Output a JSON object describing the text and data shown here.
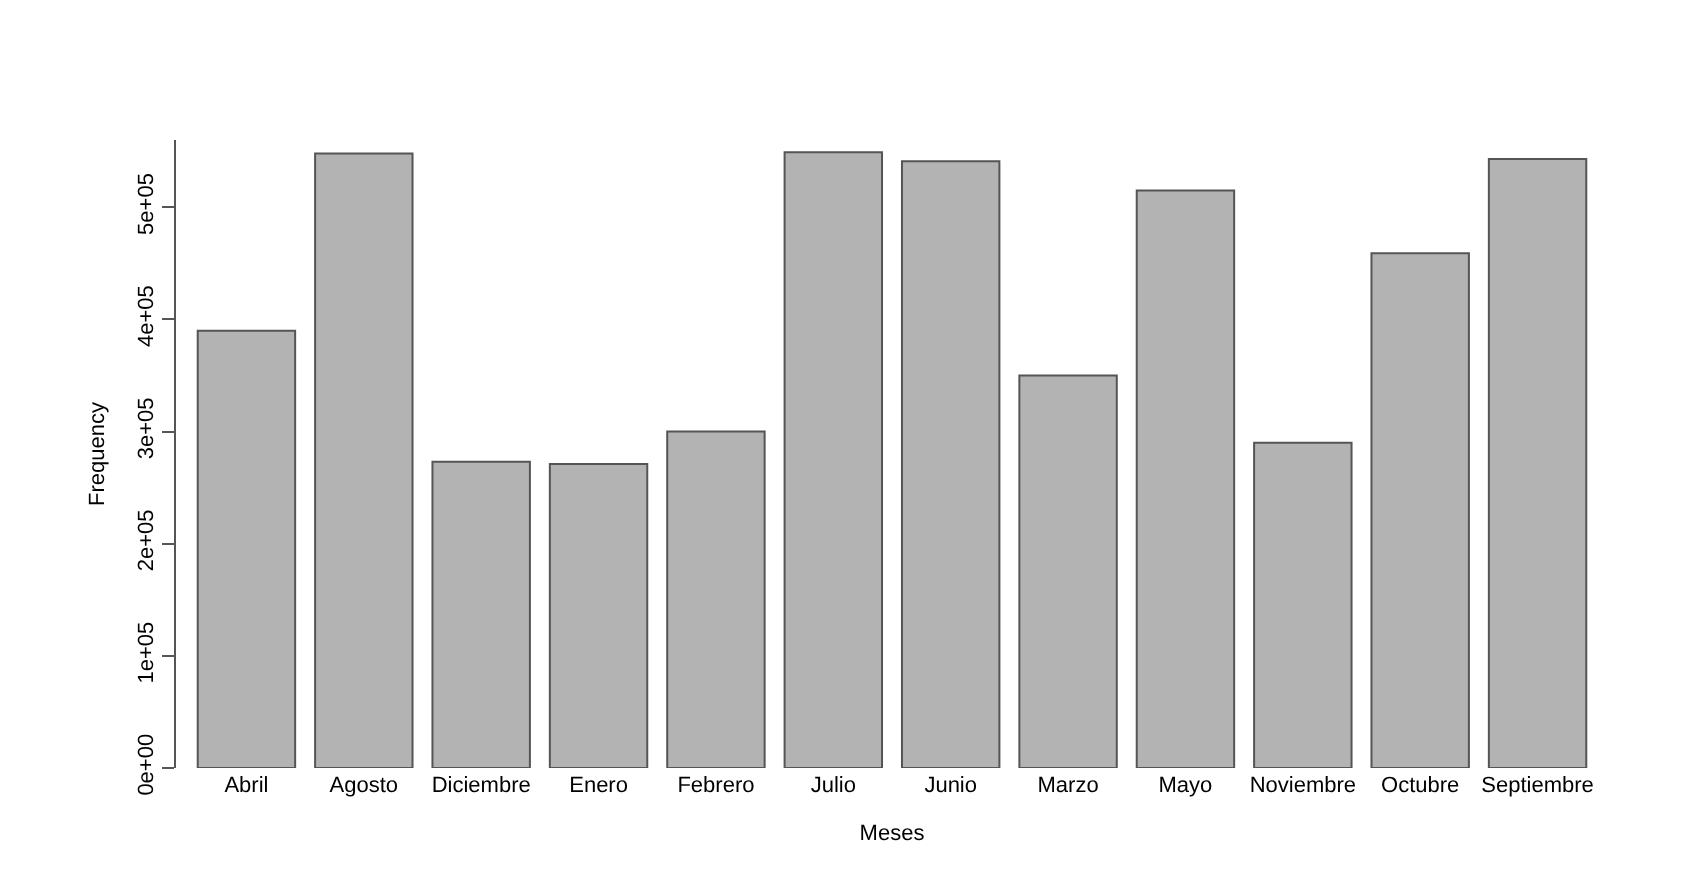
{
  "chart_data": {
    "type": "bar",
    "xlabel": "Meses",
    "ylabel": "Frequency",
    "categories": [
      "Abril",
      "Agosto",
      "Diciembre",
      "Enero",
      "Febrero",
      "Julio",
      "Junio",
      "Marzo",
      "Mayo",
      "Noviembre",
      "Octubre",
      "Septiembre"
    ],
    "values": [
      390000,
      548000,
      273000,
      271000,
      300000,
      549000,
      541000,
      350000,
      515000,
      290000,
      459000,
      543000
    ],
    "color": "#b3b3b3",
    "ylim": [
      0,
      560000
    ],
    "yticks": [
      {
        "value": 0,
        "label": "0e+00"
      },
      {
        "value": 100000,
        "label": "1e+05"
      },
      {
        "value": 200000,
        "label": "2e+05"
      },
      {
        "value": 300000,
        "label": "3e+05"
      },
      {
        "value": 400000,
        "label": "4e+05"
      },
      {
        "value": 500000,
        "label": "5e+05"
      }
    ],
    "grid": false,
    "legend": false
  }
}
